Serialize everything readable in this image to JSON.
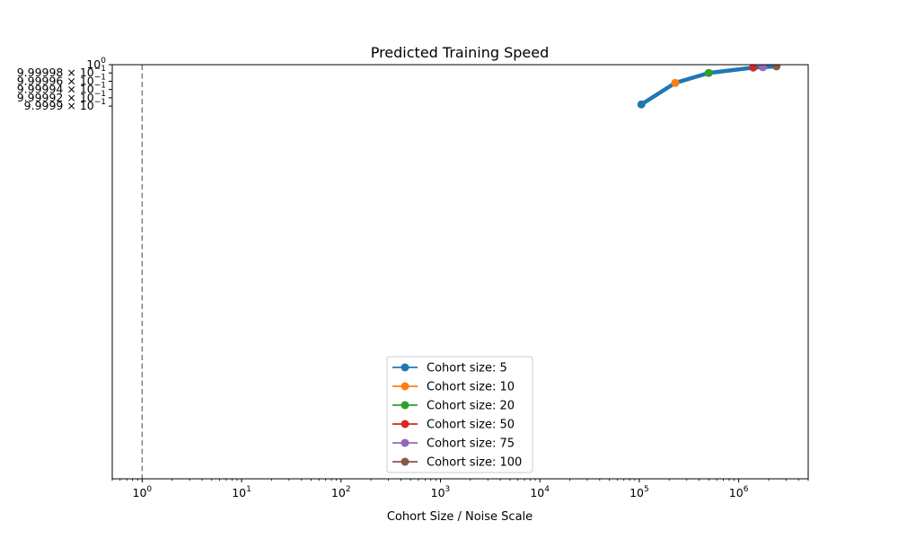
{
  "chart_data": {
    "type": "line",
    "title": "Predicted Training Speed",
    "xlabel": "Cohort Size / Noise Scale",
    "ylabel": "",
    "x_scale": "log",
    "y_scale": "log",
    "xlim": [
      0.5,
      5000000
    ],
    "ylim": [
      0.9999,
      1.0
    ],
    "x_ticks": [
      {
        "value": 1,
        "base": "10",
        "exp": "0"
      },
      {
        "value": 10,
        "base": "10",
        "exp": "1"
      },
      {
        "value": 100,
        "base": "10",
        "exp": "2"
      },
      {
        "value": 1000,
        "base": "10",
        "exp": "3"
      },
      {
        "value": 10000,
        "base": "10",
        "exp": "4"
      },
      {
        "value": 100000,
        "base": "10",
        "exp": "5"
      },
      {
        "value": 1000000,
        "base": "10",
        "exp": "6"
      }
    ],
    "y_ticks": [
      {
        "value": 1.0,
        "mant": "",
        "base": "10",
        "exp": "0"
      },
      {
        "value": 0.999998,
        "mant": "9.99998 × ",
        "base": "10",
        "exp": "−1"
      },
      {
        "value": 0.999996,
        "mant": "9.99996 × ",
        "base": "10",
        "exp": "−1"
      },
      {
        "value": 0.999994,
        "mant": "9.99994 × ",
        "base": "10",
        "exp": "−1"
      },
      {
        "value": 0.999992,
        "mant": "9.99992 × ",
        "base": "10",
        "exp": "−1"
      },
      {
        "value": 0.99999,
        "mant": "9.9999 × ",
        "base": "10",
        "exp": "−1"
      }
    ],
    "reference_line": {
      "x": 1,
      "style": "dashed",
      "color": "#808080"
    },
    "main_line": {
      "color": "#1f77b4",
      "x": [
        105000,
        230000,
        500000,
        1400000,
        1750000,
        2400000
      ],
      "y": [
        0.9999904,
        0.9999956,
        0.999998,
        0.9999993,
        0.9999994,
        0.9999996
      ]
    },
    "series": [
      {
        "name": "Cohort size: 5",
        "color": "#1f77b4",
        "x": 105000,
        "y": 0.9999904
      },
      {
        "name": "Cohort size: 10",
        "color": "#ff7f0e",
        "x": 230000,
        "y": 0.9999956
      },
      {
        "name": "Cohort size: 20",
        "color": "#2ca02c",
        "x": 500000,
        "y": 0.999998
      },
      {
        "name": "Cohort size: 50",
        "color": "#d62728",
        "x": 1400000,
        "y": 0.9999993
      },
      {
        "name": "Cohort size: 75",
        "color": "#9467bd",
        "x": 1750000,
        "y": 0.9999994
      },
      {
        "name": "Cohort size: 100",
        "color": "#8c564b",
        "x": 2400000,
        "y": 0.9999996
      }
    ],
    "grid": false,
    "legend_position": "lower-center"
  }
}
